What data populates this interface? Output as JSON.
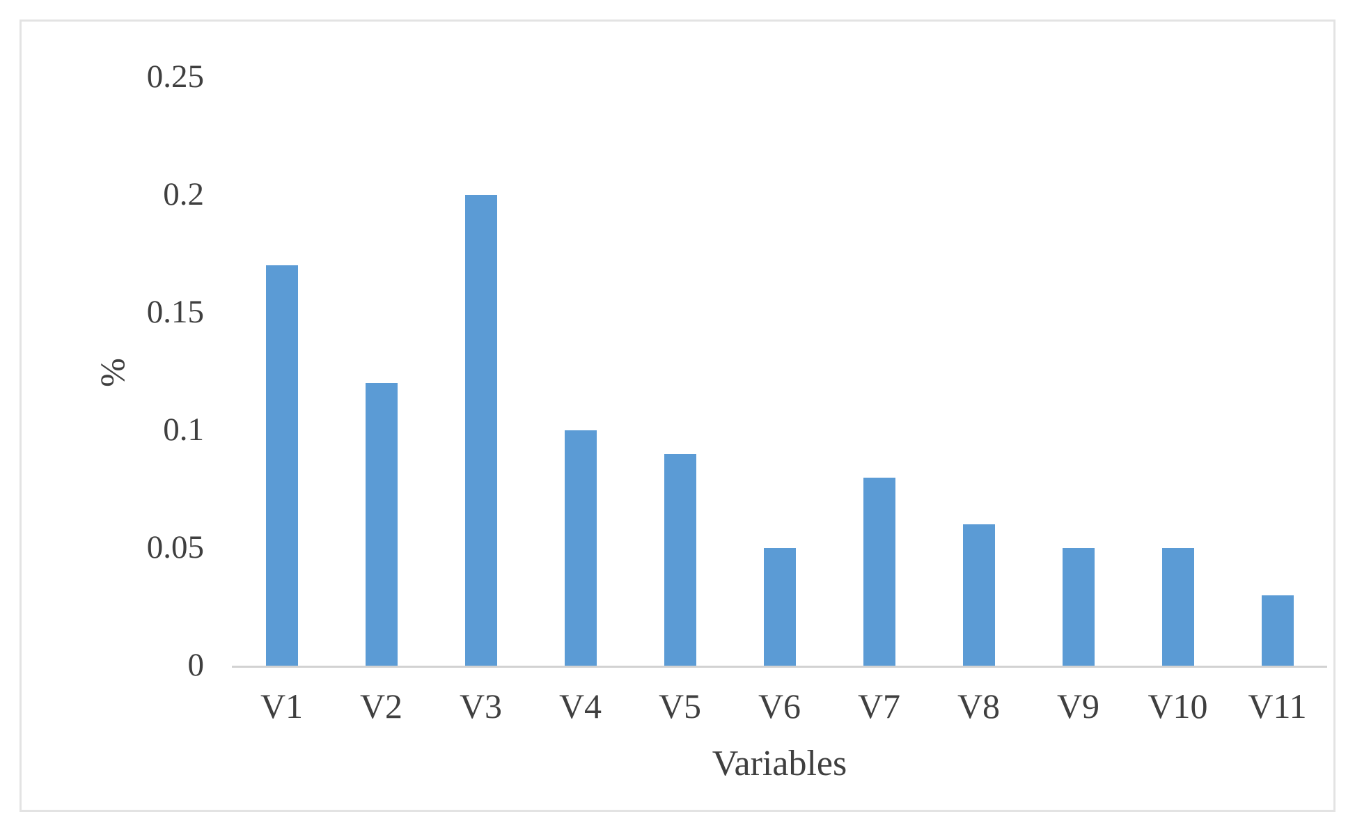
{
  "figure": {
    "background_color": "#ffffff",
    "frame_border_color": "#e3e3e3"
  },
  "chart_data": {
    "type": "bar",
    "title": "",
    "categories": [
      "V1",
      "V2",
      "V3",
      "V4",
      "V5",
      "V6",
      "V7",
      "V8",
      "V9",
      "V10",
      "V11"
    ],
    "values": [
      0.17,
      0.12,
      0.2,
      0.1,
      0.09,
      0.05,
      0.08,
      0.06,
      0.05,
      0.05,
      0.03
    ],
    "xlabel": "Variables",
    "ylabel": "%",
    "ylim": [
      0,
      0.25
    ],
    "yticks": [
      0,
      0.05,
      0.1,
      0.15,
      0.2,
      0.25
    ],
    "ytick_labels": [
      "0",
      "0.05",
      "0.1",
      "0.15",
      "0.2",
      "0.25"
    ],
    "grid": false,
    "legend_position": "none",
    "bar_color": "#5B9BD5",
    "axis_line_color": "#d2d2d2",
    "text_color": "#3f3f3f"
  }
}
